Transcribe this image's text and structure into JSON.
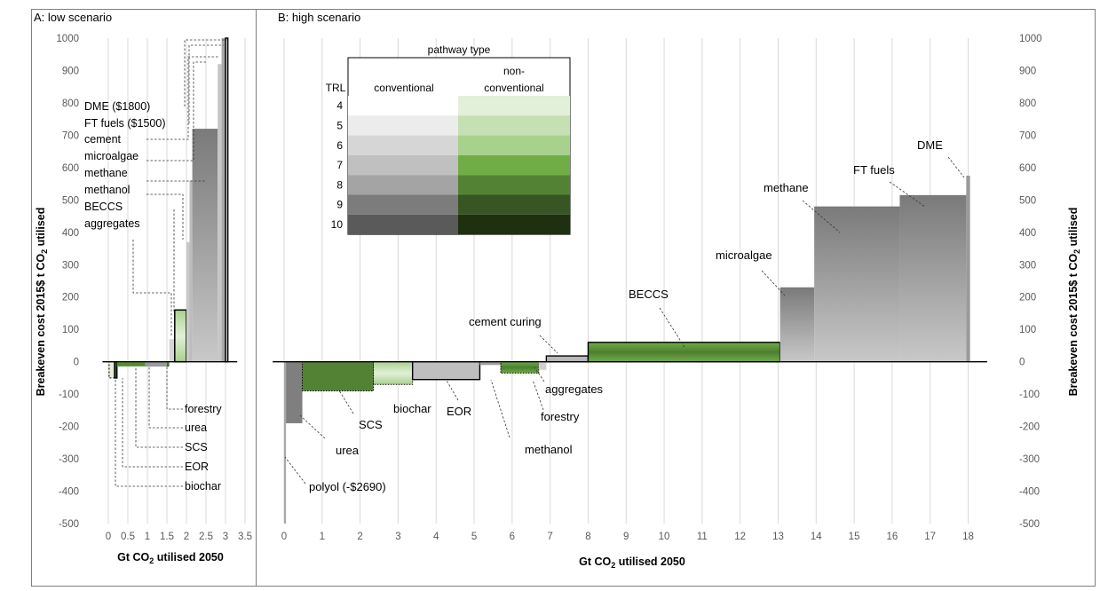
{
  "chart_data": [
    {
      "type": "bar",
      "panel": "A",
      "title": "A: low scenario",
      "xlabel": "Gt CO2 utilised 2050",
      "ylabel": "Breakeven cost 2015$ t CO2 utilised",
      "xlim": [
        -0.5,
        3.5
      ],
      "ylim": [
        -500,
        1000
      ],
      "xticks": [
        "0",
        "0.5",
        "1",
        "1.5",
        "2",
        "2.5",
        "3",
        "3.5"
      ],
      "yticks": [
        "-500",
        "-400",
        "-300",
        "-200",
        "-100",
        "0",
        "100",
        "200",
        "300",
        "400",
        "500",
        "600",
        "700",
        "800",
        "900",
        "1000"
      ],
      "grid": "vertical",
      "bars": [
        {
          "name": "biochar",
          "x0": 0.02,
          "x1": 0.16,
          "y": -50,
          "type": "non-conventional",
          "trl": 4
        },
        {
          "name": "EOR",
          "x0": 0.16,
          "x1": 0.22,
          "y": -50,
          "type": "conventional",
          "trl": 10
        },
        {
          "name": "SCS",
          "x0": 0.22,
          "x1": 0.95,
          "y": -15,
          "type": "non-conventional",
          "trl": 7
        },
        {
          "name": "urea",
          "x0": 0.95,
          "x1": 1.5,
          "y": -15,
          "type": "conventional",
          "trl": 9
        },
        {
          "name": "forestry",
          "x0": 1.5,
          "x1": 1.56,
          "y": -15,
          "type": "non-conventional",
          "trl": 8
        },
        {
          "name": "aggregates",
          "x0": 1.56,
          "x1": 1.7,
          "y": 70,
          "type": "conventional",
          "trl": 6
        },
        {
          "name": "BECCS",
          "x0": 1.7,
          "x1": 2.0,
          "y": 160,
          "type": "non-conventional",
          "trl": 6
        },
        {
          "name": "methanol",
          "x0": 2.0,
          "x1": 2.08,
          "y": 370,
          "type": "conventional",
          "trl": 9
        },
        {
          "name": "methane",
          "x0": 2.08,
          "x1": 2.15,
          "y": 560,
          "type": "conventional",
          "trl": 7
        },
        {
          "name": "microalgae",
          "x0": 2.15,
          "x1": 2.8,
          "y": 720,
          "type": "conventional",
          "trl": 6
        },
        {
          "name": "cement",
          "x0": 2.8,
          "x1": 2.9,
          "y": 920,
          "type": "conventional",
          "trl": 6
        },
        {
          "name": "FT fuels",
          "x0": 2.9,
          "x1": 3.0,
          "y": 1000,
          "type": "conventional",
          "trl": 8
        },
        {
          "name": "DME",
          "x0": 3.0,
          "x1": 3.06,
          "y": 1000,
          "type": "conventional",
          "trl": 10
        }
      ],
      "annotations": [
        "DME ($1800)",
        "FT fuels ($1500)",
        "cement",
        "microalgae",
        "methane",
        "methanol",
        "BECCS",
        "aggregates",
        "forestry",
        "urea",
        "SCS",
        "EOR",
        "biochar"
      ]
    },
    {
      "type": "bar",
      "panel": "B",
      "title": "B: high scenario",
      "xlabel": "Gt CO2 utilised 2050",
      "ylabel": "Breakeven cost 2015$ t CO2 utilised",
      "xlim": [
        0,
        18.5
      ],
      "ylim": [
        -500,
        1000
      ],
      "xticks": [
        "0",
        "1",
        "2",
        "3",
        "4",
        "5",
        "6",
        "7",
        "8",
        "9",
        "10",
        "11",
        "12",
        "13",
        "14",
        "15",
        "16",
        "17",
        "18"
      ],
      "yticks": [
        "-500",
        "-400",
        "-300",
        "-200",
        "-100",
        "0",
        "100",
        "200",
        "300",
        "400",
        "500",
        "600",
        "700",
        "800",
        "900",
        "1000"
      ],
      "grid": "vertical",
      "bars": [
        {
          "name": "polyol",
          "x0": 0.0,
          "x1": 0.05,
          "y": -500,
          "type": "conventional",
          "trl": 8
        },
        {
          "name": "urea",
          "x0": 0.05,
          "x1": 0.48,
          "y": -190,
          "type": "conventional",
          "trl": 10
        },
        {
          "name": "SCS",
          "x0": 0.48,
          "x1": 2.35,
          "y": -90,
          "type": "non-conventional",
          "trl": 7
        },
        {
          "name": "biochar",
          "x0": 2.35,
          "x1": 3.38,
          "y": -70,
          "type": "non-conventional",
          "trl": 4
        },
        {
          "name": "EOR",
          "x0": 3.38,
          "x1": 5.15,
          "y": -55,
          "type": "conventional",
          "trl": 7
        },
        {
          "name": "methanol",
          "x0": 5.15,
          "x1": 5.7,
          "y": -10,
          "type": "conventional",
          "trl": 8
        },
        {
          "name": "forestry",
          "x0": 5.7,
          "x1": 6.7,
          "y": -35,
          "type": "non-conventional",
          "trl": 8
        },
        {
          "name": "aggregates",
          "x0": 6.7,
          "x1": 6.9,
          "y": -25,
          "type": "conventional",
          "trl": 5
        },
        {
          "name": "cement curing",
          "x0": 6.9,
          "x1": 8.0,
          "y": 18,
          "type": "conventional",
          "trl": 6
        },
        {
          "name": "BECCS",
          "x0": 8.0,
          "x1": 13.05,
          "y": 60,
          "type": "non-conventional",
          "trl": 7
        },
        {
          "name": "microalgae",
          "x0": 13.05,
          "x1": 13.95,
          "y": 230,
          "type": "conventional",
          "trl": 7
        },
        {
          "name": "methane",
          "x0": 13.95,
          "x1": 16.2,
          "y": 480,
          "type": "conventional",
          "trl": 7
        },
        {
          "name": "FT fuels",
          "x0": 16.2,
          "x1": 17.95,
          "y": 515,
          "type": "conventional",
          "trl": 7
        },
        {
          "name": "DME",
          "x0": 17.95,
          "x1": 18.05,
          "y": 575,
          "type": "conventional",
          "trl": 8
        }
      ],
      "annotations": [
        "polyol (-$2690)",
        "urea",
        "SCS",
        "biochar",
        "EOR",
        "methanol",
        "forestry",
        "aggregates",
        "cement curing",
        "BECCS",
        "microalgae",
        "methane",
        "FT fuels",
        "DME"
      ]
    }
  ],
  "legend": {
    "title": "pathway type",
    "row_header": "TRL",
    "col_conventional": "conventional",
    "col_nonconventional_1": "non-",
    "col_nonconventional_2": "conventional",
    "trl_levels": [
      "4",
      "5",
      "6",
      "7",
      "8",
      "9",
      "10"
    ],
    "conventional_colors": [
      "#ffffff",
      "#ececec",
      "#d6d6d6",
      "#c0c0c0",
      "#a4a4a4",
      "#7c7c7c",
      "#5a5a5a"
    ],
    "nonconventional_colors": [
      "#e2efd9",
      "#c5e0b3",
      "#a9d18e",
      "#70ad47",
      "#548235",
      "#375623",
      "#1e3010"
    ]
  },
  "colors": {
    "grid": "#d9d9d9",
    "axis_text": "#595959",
    "frame": "#7f7f7f"
  }
}
